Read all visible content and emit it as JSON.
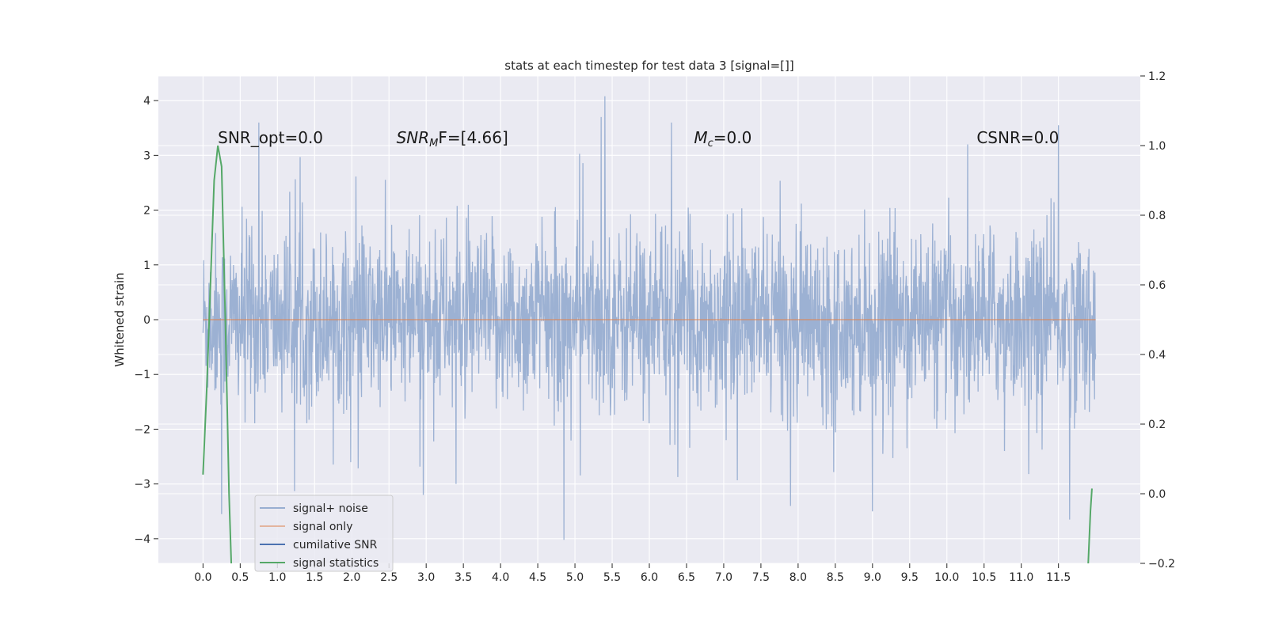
{
  "chart_data": {
    "type": "line",
    "title": "stats at each timestep for test data 3 [signal=[]]",
    "xlabel": "",
    "ylabel": "Whitened strain",
    "xlim": [
      -0.6,
      12.6
    ],
    "ylim": [
      -4.45,
      4.45
    ],
    "y2lim": [
      -0.2,
      1.2
    ],
    "grid": true,
    "legend_position": "lower-left",
    "x_ticks": [
      0.0,
      0.5,
      1.0,
      1.5,
      2.0,
      2.5,
      3.0,
      3.5,
      4.0,
      4.5,
      5.0,
      5.5,
      6.0,
      6.5,
      7.0,
      7.5,
      8.0,
      8.5,
      9.0,
      9.5,
      10.0,
      10.5,
      11.0,
      11.5
    ],
    "x_tick_labels": [
      "0.0",
      "0.5",
      "1.0",
      "1.5",
      "2.0",
      "2.5",
      "3.0",
      "3.5",
      "4.0",
      "4.5",
      "5.0",
      "5.5",
      "6.0",
      "6.5",
      "7.0",
      "7.5",
      "8.0",
      "8.5",
      "9.0",
      "9.5",
      "10.0",
      "10.5",
      "11.0",
      "11.5"
    ],
    "y_ticks": [
      4,
      3,
      2,
      1,
      0,
      -1,
      -2,
      -3,
      -4
    ],
    "y_tick_labels": [
      "4",
      "3",
      "2",
      "1",
      "0",
      "−1",
      "−2",
      "−3",
      "−4"
    ],
    "y2_ticks": [
      1.2,
      1.0,
      0.8,
      0.6,
      0.4,
      0.2,
      0.0,
      -0.2
    ],
    "y2_tick_labels": [
      "1.2",
      "1.0",
      "0.8",
      "0.6",
      "0.4",
      "0.2",
      "0.0",
      "−0.2"
    ],
    "annotations": [
      {
        "id": "snr-opt",
        "text": "SNR_opt=0.0",
        "x": 0.2
      },
      {
        "id": "snr-mf",
        "text": "SNR",
        "sub": "M",
        "after": "F=[4.66]",
        "x": 2.6
      },
      {
        "id": "mc",
        "text": "M",
        "sub": "c",
        "after": "=0.0",
        "x": 6.6
      },
      {
        "id": "csnr",
        "text": "CSNR=0.0",
        "x": 10.4
      }
    ],
    "annotation_y": 3.22,
    "colors": {
      "noise": "#98aed1",
      "signal": "#dd8452",
      "cumulative": "#4c72b0",
      "stats": "#55a868",
      "grid": "#ffffff",
      "background": "#eaeaf2"
    },
    "series": [
      {
        "name": "signal+ noise",
        "x_range": [
          0.0,
          12.0
        ],
        "sample_count": 2400,
        "std": 0.78,
        "extremes": [
          {
            "x": 5.4,
            "y": 4.08
          },
          {
            "x": 4.85,
            "y": -4.02
          },
          {
            "x": 5.35,
            "y": 3.7
          },
          {
            "x": 0.75,
            "y": 3.6
          },
          {
            "x": 11.5,
            "y": 3.55
          },
          {
            "x": 0.25,
            "y": -3.55
          },
          {
            "x": 9.0,
            "y": -3.5
          },
          {
            "x": 11.65,
            "y": -3.65
          },
          {
            "x": 6.3,
            "y": 3.6
          },
          {
            "x": 3.4,
            "y": -3.0
          },
          {
            "x": 7.9,
            "y": -3.4
          }
        ]
      },
      {
        "name": "signal only",
        "x": [
          0.0,
          12.0
        ],
        "y": [
          0.0,
          0.0
        ]
      },
      {
        "name": "cumilative SNR",
        "x": [],
        "y": []
      },
      {
        "name": "signal statistics",
        "axis": "right",
        "x": [
          0.0,
          0.05,
          0.1,
          0.15,
          0.2,
          0.25,
          0.3,
          0.35,
          0.38,
          11.9,
          11.93,
          11.95
        ],
        "y": [
          0.055,
          0.3,
          0.6,
          0.9,
          1.0,
          0.94,
          0.5,
          0.0,
          -0.2,
          -0.2,
          -0.05,
          0.015
        ]
      }
    ]
  }
}
